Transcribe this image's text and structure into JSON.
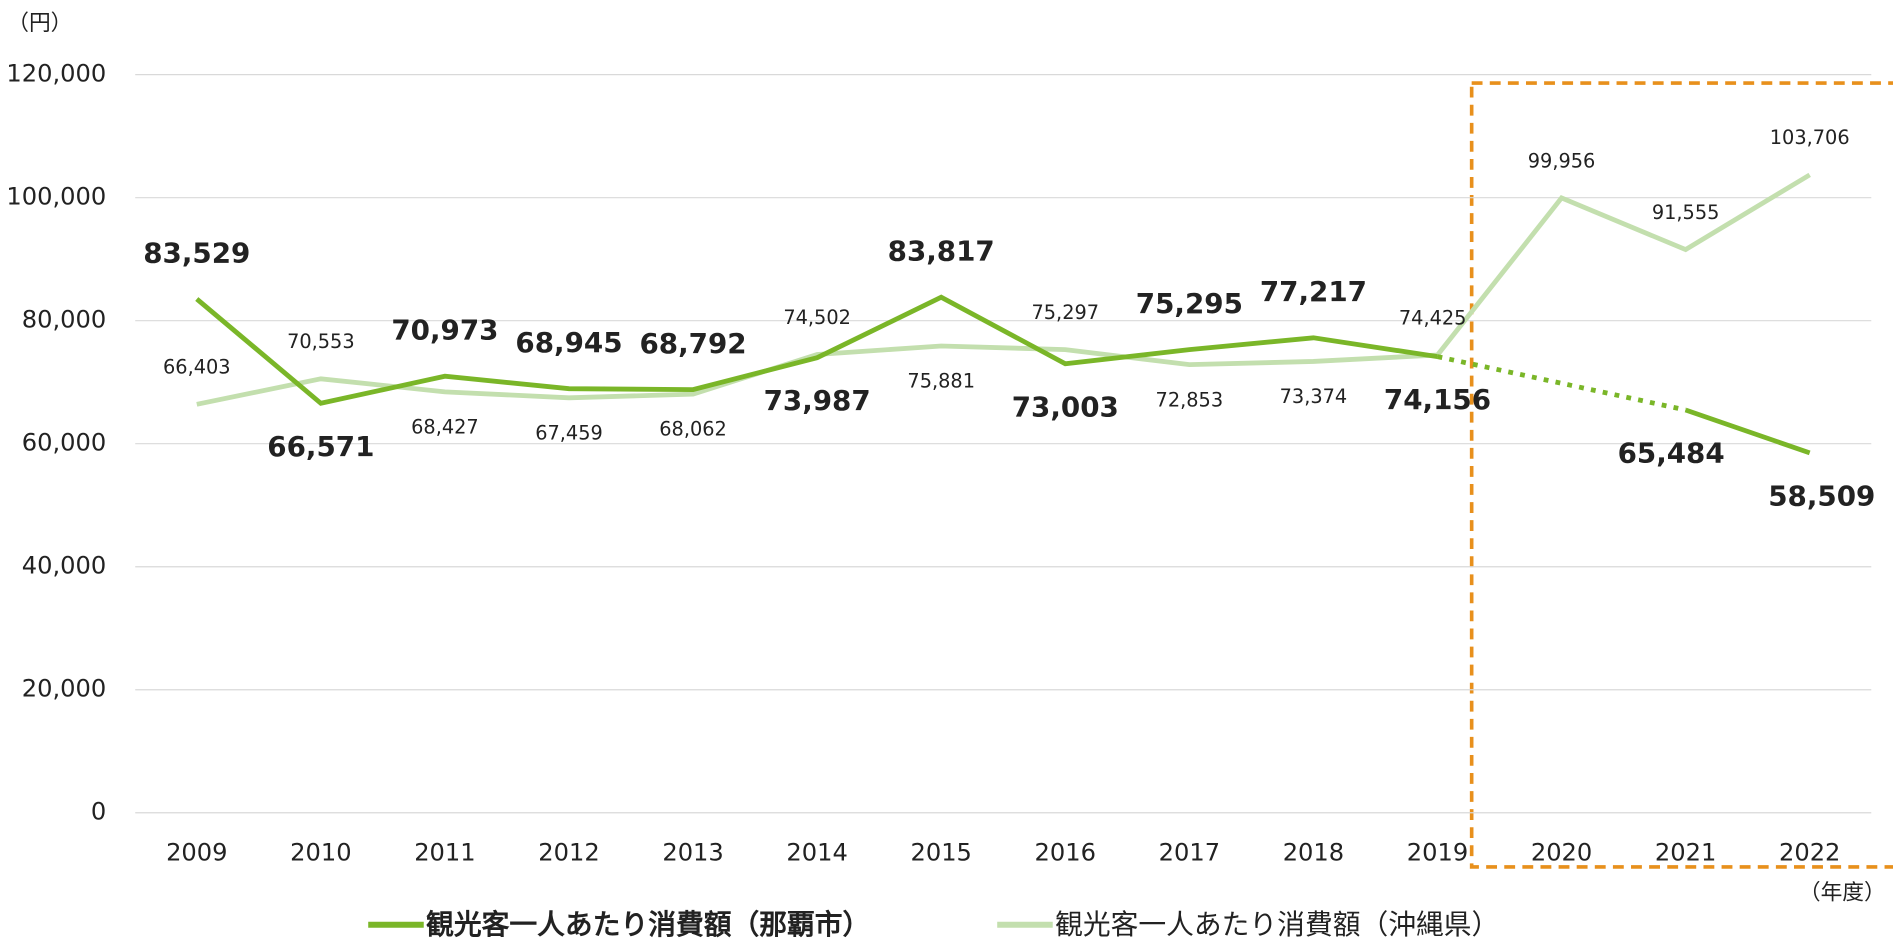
{
  "chart_data": {
    "type": "line",
    "y_unit": "（円）",
    "x_unit": "（年度）",
    "categories": [
      "2009",
      "2010",
      "2011",
      "2012",
      "2013",
      "2014",
      "2015",
      "2016",
      "2017",
      "2018",
      "2019",
      "2020",
      "2021",
      "2022"
    ],
    "series": [
      {
        "name": "観光客一人あたり消費額（那覇市）",
        "color": "#7ab628",
        "values": [
          83529,
          66571,
          70973,
          68945,
          68792,
          73987,
          83817,
          73003,
          75295,
          77217,
          74156,
          null,
          65484,
          58509
        ],
        "value_labels": [
          "83,529",
          "66,571",
          "70,973",
          "68,945",
          "68,792",
          "73,987",
          "83,817",
          "73,003",
          "75,295",
          "77,217",
          "74,156",
          null,
          "65,484",
          "58,509"
        ]
      },
      {
        "name": "観光客一人あたり消費額（沖縄県）",
        "color": "#c3dfae",
        "values": [
          66403,
          70553,
          68427,
          67459,
          68062,
          74502,
          75881,
          75297,
          72853,
          73374,
          74425,
          99956,
          91555,
          103706
        ],
        "value_labels": [
          "66,403",
          "70,553",
          "68,427",
          "67,459",
          "68,062",
          "74,502",
          "75,881",
          "75,297",
          "72,853",
          "73,374",
          "74,425",
          "99,956",
          "91,555",
          "103,706"
        ]
      }
    ],
    "ylim": [
      0,
      120000
    ],
    "yticks": [
      0,
      {
        "value": 20000,
        "label": "20,000"
      },
      {
        "value": 40000,
        "label": "40,000"
      },
      {
        "value": 60000,
        "label": "60,000"
      },
      {
        "value": 80000,
        "label": "80,000"
      },
      {
        "value": 100000,
        "label": "100,000"
      },
      {
        "value": 120000,
        "label": "120,000"
      }
    ],
    "grid": true
  }
}
